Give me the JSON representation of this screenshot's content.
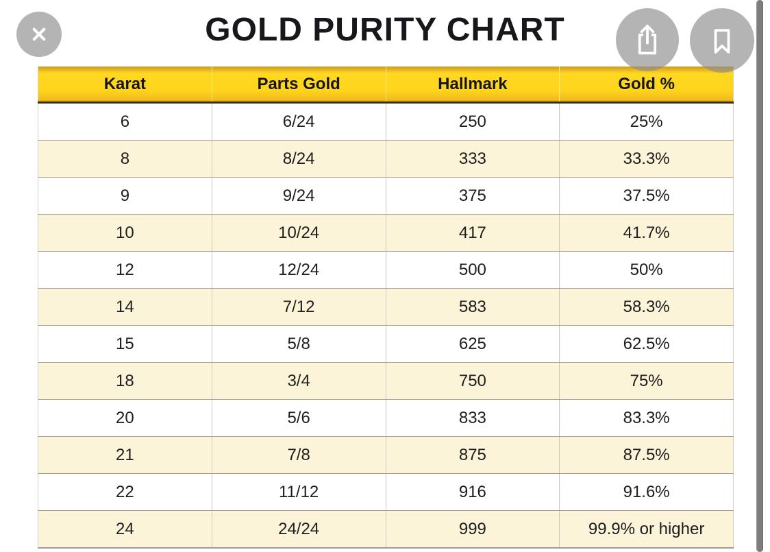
{
  "title": "GOLD PURITY CHART",
  "toolbar": {
    "close_icon": "x-cross",
    "share_icon": "square-with-up-arrow",
    "bookmark_icon": "bookmark-ribbon"
  },
  "colors": {
    "header_gold": "#ffd51c",
    "header_gold_dark": "#d1991b",
    "header_border": "#37330d",
    "row_cream": "#fbf4d9",
    "row_white": "#ffffff",
    "row_divider": "#a69f8f",
    "button_gray": "#b4b4b4",
    "scrollbar_gray": "#7d7d7d",
    "text_black": "#1d1d1d"
  },
  "chart_data": {
    "type": "table",
    "title": "GOLD PURITY CHART",
    "columns": [
      "Karat",
      "Parts Gold",
      "Hallmark",
      "Gold %"
    ],
    "rows": [
      [
        "6",
        "6/24",
        "250",
        "25%"
      ],
      [
        "8",
        "8/24",
        "333",
        "33.3%"
      ],
      [
        "9",
        "9/24",
        "375",
        "37.5%"
      ],
      [
        "10",
        "10/24",
        "417",
        "41.7%"
      ],
      [
        "12",
        "12/24",
        "500",
        "50%"
      ],
      [
        "14",
        "7/12",
        "583",
        "58.3%"
      ],
      [
        "15",
        "5/8",
        "625",
        "62.5%"
      ],
      [
        "18",
        "3/4",
        "750",
        "75%"
      ],
      [
        "20",
        "5/6",
        "833",
        "83.3%"
      ],
      [
        "21",
        "7/8",
        "875",
        "87.5%"
      ],
      [
        "22",
        "11/12",
        "916",
        "91.6%"
      ],
      [
        "24",
        "24/24",
        "999",
        "99.9% or higher"
      ]
    ],
    "layout": {
      "header_fill": "gold-gradient",
      "row_striping": [
        "white",
        "cream"
      ],
      "grid": true,
      "column_alignment": "center"
    }
  }
}
